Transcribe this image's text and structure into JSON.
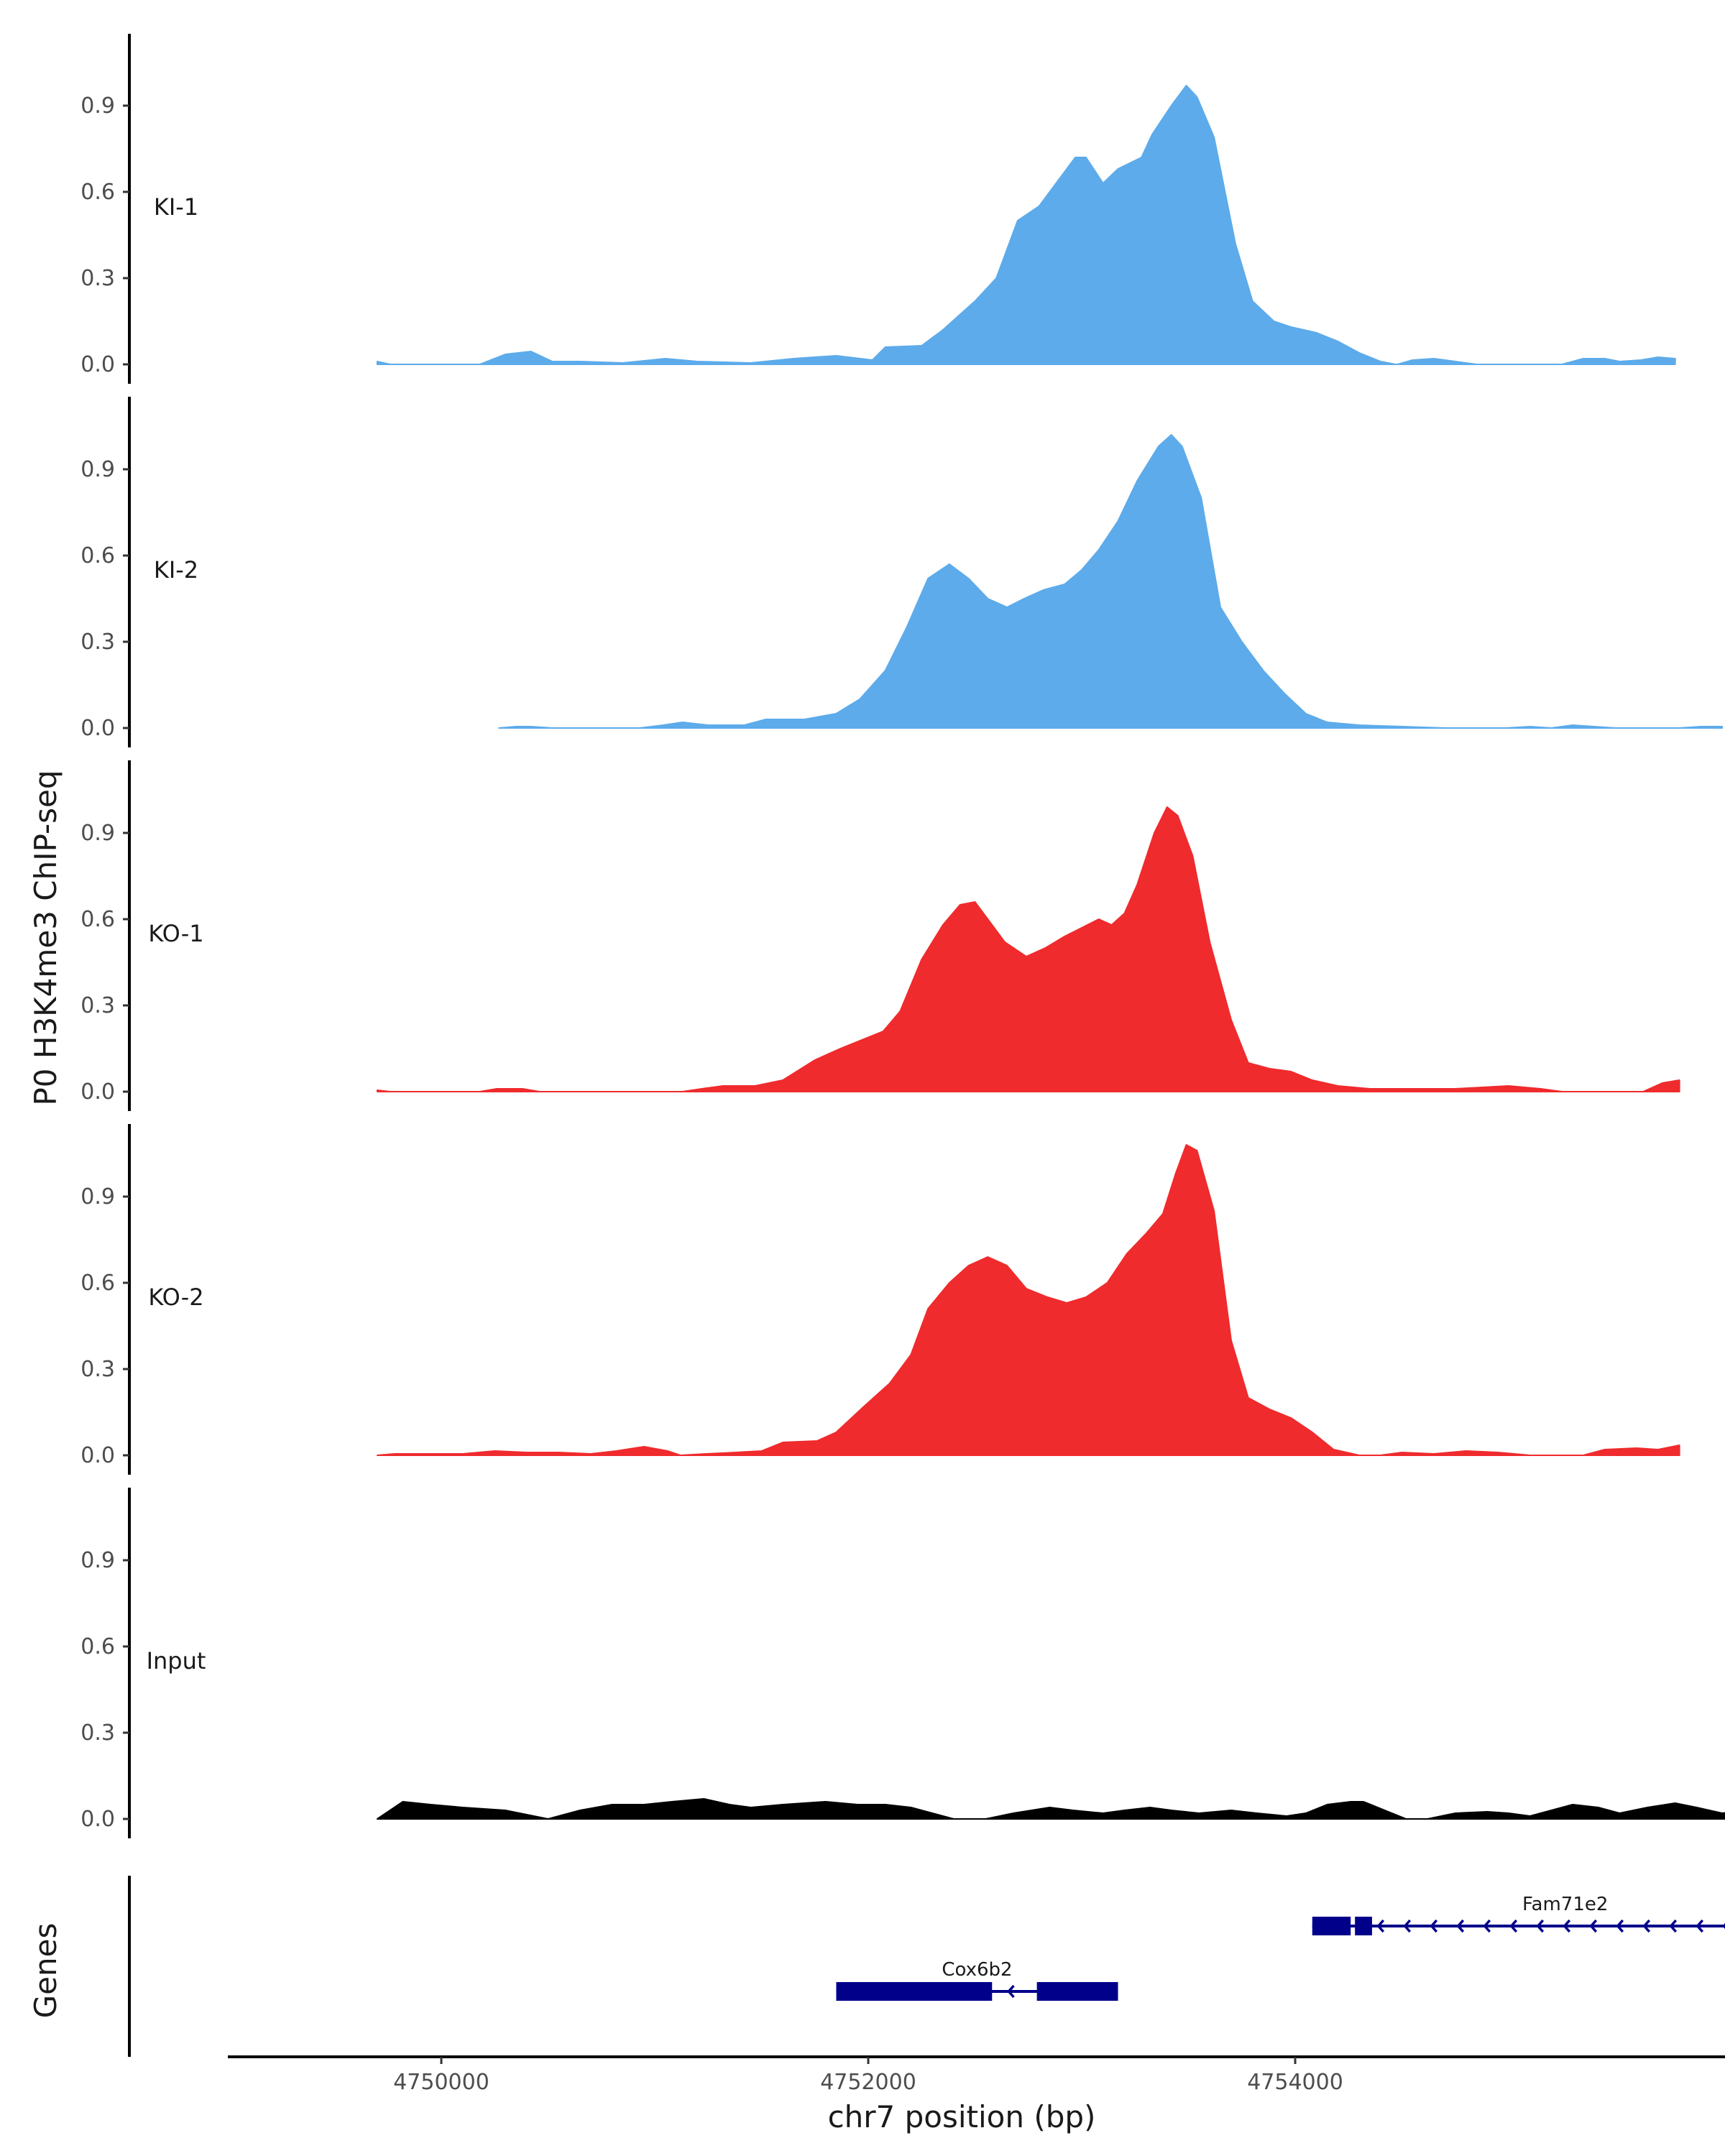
{
  "chart_data": {
    "type": "area",
    "ylabel": "P0 H3K4me3 ChIP-seq",
    "xlabel": "chr7 position (bp)",
    "genes_label": "Genes",
    "ylim": [
      -0.03,
      1.15
    ],
    "y_ticks": [
      0.0,
      0.3,
      0.6,
      0.9
    ],
    "y_tick_labels": [
      "0.0",
      "0.3",
      "0.6",
      "0.9"
    ],
    "xlim": [
      4749000,
      4756400
    ],
    "x_ticks": [
      4750000,
      4752000,
      4754000
    ],
    "x_tick_labels": [
      "4750000",
      "4752000",
      "4754000"
    ],
    "tracks": [
      {
        "name": "KI-1",
        "color": "#5DABEA",
        "points": [
          [
            4749700,
            0.01
          ],
          [
            4749760,
            0.0
          ],
          [
            4750180,
            0.0
          ],
          [
            4750300,
            0.035
          ],
          [
            4750420,
            0.045
          ],
          [
            4750520,
            0.01
          ],
          [
            4750650,
            0.01
          ],
          [
            4750850,
            0.005
          ],
          [
            4751050,
            0.02
          ],
          [
            4751200,
            0.01
          ],
          [
            4751450,
            0.005
          ],
          [
            4751650,
            0.02
          ],
          [
            4751850,
            0.03
          ],
          [
            4752020,
            0.015
          ],
          [
            4752080,
            0.06
          ],
          [
            4752250,
            0.065
          ],
          [
            4752350,
            0.12
          ],
          [
            4752500,
            0.22
          ],
          [
            4752600,
            0.3
          ],
          [
            4752700,
            0.5
          ],
          [
            4752800,
            0.55
          ],
          [
            4752900,
            0.65
          ],
          [
            4752970,
            0.72
          ],
          [
            4753020,
            0.72
          ],
          [
            4753100,
            0.63
          ],
          [
            4753170,
            0.68
          ],
          [
            4753280,
            0.72
          ],
          [
            4753330,
            0.8
          ],
          [
            4753420,
            0.9
          ],
          [
            4753490,
            0.97
          ],
          [
            4753540,
            0.93
          ],
          [
            4753620,
            0.79
          ],
          [
            4753720,
            0.42
          ],
          [
            4753800,
            0.22
          ],
          [
            4753900,
            0.15
          ],
          [
            4753980,
            0.13
          ],
          [
            4754100,
            0.11
          ],
          [
            4754200,
            0.08
          ],
          [
            4754300,
            0.04
          ],
          [
            4754400,
            0.01
          ],
          [
            4754470,
            0.0
          ],
          [
            4754480,
            0.0
          ],
          [
            4754550,
            0.015
          ],
          [
            4754650,
            0.02
          ],
          [
            4754750,
            0.01
          ],
          [
            4754850,
            0.0
          ],
          [
            4755250,
            0.0
          ],
          [
            4755350,
            0.02
          ],
          [
            4755450,
            0.02
          ],
          [
            4755520,
            0.01
          ],
          [
            4755620,
            0.015
          ],
          [
            4755700,
            0.025
          ],
          [
            4755780,
            0.02
          ]
        ]
      },
      {
        "name": "KI-2",
        "color": "#5DABEA",
        "points": [
          [
            4750270,
            0.0
          ],
          [
            4750350,
            0.005
          ],
          [
            4750420,
            0.005
          ],
          [
            4750520,
            0.0
          ],
          [
            4750930,
            0.0
          ],
          [
            4751040,
            0.01
          ],
          [
            4751130,
            0.02
          ],
          [
            4751250,
            0.01
          ],
          [
            4751420,
            0.01
          ],
          [
            4751520,
            0.03
          ],
          [
            4751700,
            0.03
          ],
          [
            4751850,
            0.05
          ],
          [
            4751960,
            0.1
          ],
          [
            4752080,
            0.2
          ],
          [
            4752180,
            0.35
          ],
          [
            4752280,
            0.52
          ],
          [
            4752380,
            0.57
          ],
          [
            4752470,
            0.52
          ],
          [
            4752560,
            0.45
          ],
          [
            4752650,
            0.42
          ],
          [
            4752730,
            0.45
          ],
          [
            4752820,
            0.48
          ],
          [
            4752920,
            0.5
          ],
          [
            4753000,
            0.55
          ],
          [
            4753080,
            0.62
          ],
          [
            4753170,
            0.72
          ],
          [
            4753260,
            0.86
          ],
          [
            4753360,
            0.98
          ],
          [
            4753420,
            1.02
          ],
          [
            4753470,
            0.98
          ],
          [
            4753560,
            0.8
          ],
          [
            4753650,
            0.42
          ],
          [
            4753750,
            0.3
          ],
          [
            4753850,
            0.2
          ],
          [
            4753950,
            0.12
          ],
          [
            4754050,
            0.05
          ],
          [
            4754150,
            0.02
          ],
          [
            4754300,
            0.01
          ],
          [
            4754500,
            0.005
          ],
          [
            4754700,
            0.0
          ],
          [
            4754780,
            0.0
          ],
          [
            4754990,
            0.0
          ],
          [
            4755100,
            0.005
          ],
          [
            4755200,
            0.0
          ],
          [
            4755300,
            0.01
          ],
          [
            4755400,
            0.005
          ],
          [
            4755500,
            0.0
          ],
          [
            4755800,
            0.0
          ],
          [
            4755900,
            0.005
          ],
          [
            4756000,
            0.005
          ]
        ]
      },
      {
        "name": "KO-1",
        "color": "#EF2B2D",
        "points": [
          [
            4749700,
            0.005
          ],
          [
            4749760,
            0.0
          ],
          [
            4750180,
            0.0
          ],
          [
            4750260,
            0.01
          ],
          [
            4750380,
            0.01
          ],
          [
            4750460,
            0.0
          ],
          [
            4751130,
            0.0
          ],
          [
            4751220,
            0.01
          ],
          [
            4751320,
            0.02
          ],
          [
            4751470,
            0.02
          ],
          [
            4751600,
            0.04
          ],
          [
            4751750,
            0.11
          ],
          [
            4751870,
            0.15
          ],
          [
            4751970,
            0.18
          ],
          [
            4752070,
            0.21
          ],
          [
            4752150,
            0.28
          ],
          [
            4752250,
            0.46
          ],
          [
            4752350,
            0.58
          ],
          [
            4752430,
            0.65
          ],
          [
            4752500,
            0.66
          ],
          [
            4752560,
            0.6
          ],
          [
            4752640,
            0.52
          ],
          [
            4752740,
            0.47
          ],
          [
            4752830,
            0.5
          ],
          [
            4752920,
            0.54
          ],
          [
            4753000,
            0.57
          ],
          [
            4753080,
            0.6
          ],
          [
            4753140,
            0.58
          ],
          [
            4753200,
            0.62
          ],
          [
            4753260,
            0.72
          ],
          [
            4753340,
            0.9
          ],
          [
            4753400,
            0.99
          ],
          [
            4753450,
            0.96
          ],
          [
            4753520,
            0.82
          ],
          [
            4753600,
            0.52
          ],
          [
            4753700,
            0.25
          ],
          [
            4753780,
            0.1
          ],
          [
            4753880,
            0.08
          ],
          [
            4753980,
            0.07
          ],
          [
            4754080,
            0.04
          ],
          [
            4754200,
            0.02
          ],
          [
            4754350,
            0.01
          ],
          [
            4754550,
            0.01
          ],
          [
            4754750,
            0.01
          ],
          [
            4755000,
            0.02
          ],
          [
            4755150,
            0.01
          ],
          [
            4755250,
            0.0
          ],
          [
            4755630,
            0.0
          ],
          [
            4755720,
            0.03
          ],
          [
            4755800,
            0.04
          ]
        ]
      },
      {
        "name": "KO-2",
        "color": "#EF2B2D",
        "points": [
          [
            4749700,
            0.0
          ],
          [
            4749780,
            0.005
          ],
          [
            4749950,
            0.005
          ],
          [
            4750100,
            0.005
          ],
          [
            4750250,
            0.015
          ],
          [
            4750400,
            0.01
          ],
          [
            4750550,
            0.01
          ],
          [
            4750700,
            0.005
          ],
          [
            4750820,
            0.015
          ],
          [
            4750950,
            0.03
          ],
          [
            4751060,
            0.015
          ],
          [
            4751120,
            0.0
          ],
          [
            4751240,
            0.005
          ],
          [
            4751380,
            0.01
          ],
          [
            4751500,
            0.015
          ],
          [
            4751600,
            0.045
          ],
          [
            4751760,
            0.05
          ],
          [
            4751850,
            0.08
          ],
          [
            4751980,
            0.17
          ],
          [
            4752100,
            0.25
          ],
          [
            4752200,
            0.35
          ],
          [
            4752280,
            0.51
          ],
          [
            4752380,
            0.6
          ],
          [
            4752470,
            0.66
          ],
          [
            4752560,
            0.69
          ],
          [
            4752650,
            0.66
          ],
          [
            4752740,
            0.58
          ],
          [
            4752840,
            0.55
          ],
          [
            4752930,
            0.53
          ],
          [
            4753020,
            0.55
          ],
          [
            4753120,
            0.6
          ],
          [
            4753210,
            0.7
          ],
          [
            4753300,
            0.77
          ],
          [
            4753380,
            0.84
          ],
          [
            4753440,
            0.98
          ],
          [
            4753490,
            1.08
          ],
          [
            4753540,
            1.06
          ],
          [
            4753620,
            0.85
          ],
          [
            4753700,
            0.4
          ],
          [
            4753780,
            0.2
          ],
          [
            4753880,
            0.16
          ],
          [
            4753980,
            0.13
          ],
          [
            4754080,
            0.08
          ],
          [
            4754180,
            0.02
          ],
          [
            4754300,
            0.0
          ],
          [
            4754400,
            0.0
          ],
          [
            4754500,
            0.01
          ],
          [
            4754650,
            0.005
          ],
          [
            4754800,
            0.015
          ],
          [
            4754950,
            0.01
          ],
          [
            4755100,
            0.0
          ],
          [
            4755350,
            0.0
          ],
          [
            4755450,
            0.02
          ],
          [
            4755600,
            0.025
          ],
          [
            4755700,
            0.02
          ],
          [
            4755800,
            0.035
          ]
        ]
      },
      {
        "name": "Input",
        "color": "#000000",
        "points": [
          [
            4749700,
            0.0
          ],
          [
            4749820,
            0.06
          ],
          [
            4749950,
            0.05
          ],
          [
            4750100,
            0.04
          ],
          [
            4750300,
            0.03
          ],
          [
            4750500,
            0.0
          ],
          [
            4750650,
            0.03
          ],
          [
            4750800,
            0.05
          ],
          [
            4750950,
            0.05
          ],
          [
            4751080,
            0.06
          ],
          [
            4751230,
            0.07
          ],
          [
            4751350,
            0.05
          ],
          [
            4751450,
            0.04
          ],
          [
            4751600,
            0.05
          ],
          [
            4751800,
            0.06
          ],
          [
            4751950,
            0.05
          ],
          [
            4752080,
            0.05
          ],
          [
            4752200,
            0.04
          ],
          [
            4752300,
            0.02
          ],
          [
            4752400,
            0.0
          ],
          [
            4752550,
            0.0
          ],
          [
            4752680,
            0.02
          ],
          [
            4752850,
            0.04
          ],
          [
            4752960,
            0.03
          ],
          [
            4753100,
            0.02
          ],
          [
            4753200,
            0.03
          ],
          [
            4753320,
            0.04
          ],
          [
            4753420,
            0.03
          ],
          [
            4753550,
            0.02
          ],
          [
            4753700,
            0.03
          ],
          [
            4753820,
            0.02
          ],
          [
            4753960,
            0.01
          ],
          [
            4754050,
            0.02
          ],
          [
            4754150,
            0.05
          ],
          [
            4754260,
            0.06
          ],
          [
            4754320,
            0.06
          ],
          [
            4754420,
            0.03
          ],
          [
            4754520,
            0.0
          ],
          [
            4754620,
            0.0
          ],
          [
            4754750,
            0.02
          ],
          [
            4754900,
            0.025
          ],
          [
            4755000,
            0.02
          ],
          [
            4755100,
            0.01
          ],
          [
            4755200,
            0.03
          ],
          [
            4755300,
            0.05
          ],
          [
            4755420,
            0.04
          ],
          [
            4755520,
            0.02
          ],
          [
            4755650,
            0.04
          ],
          [
            4755780,
            0.055
          ],
          [
            4755880,
            0.04
          ],
          [
            4756000,
            0.02
          ],
          [
            4756100,
            0.03
          ],
          [
            4756200,
            0.035
          ]
        ]
      }
    ],
    "genes": [
      {
        "name": "Fam71e2",
        "start": 4754080,
        "end": 4756450,
        "strand": "-",
        "row": 1,
        "exons": [
          [
            4754080,
            4754260
          ],
          [
            4754280,
            4754360
          ]
        ]
      },
      {
        "name": "Cox6b2",
        "start": 4751850,
        "end": 4753170,
        "strand": "-",
        "row": 2,
        "exons": [
          [
            4751850,
            4752580
          ],
          [
            4752790,
            4753170
          ]
        ]
      }
    ]
  }
}
